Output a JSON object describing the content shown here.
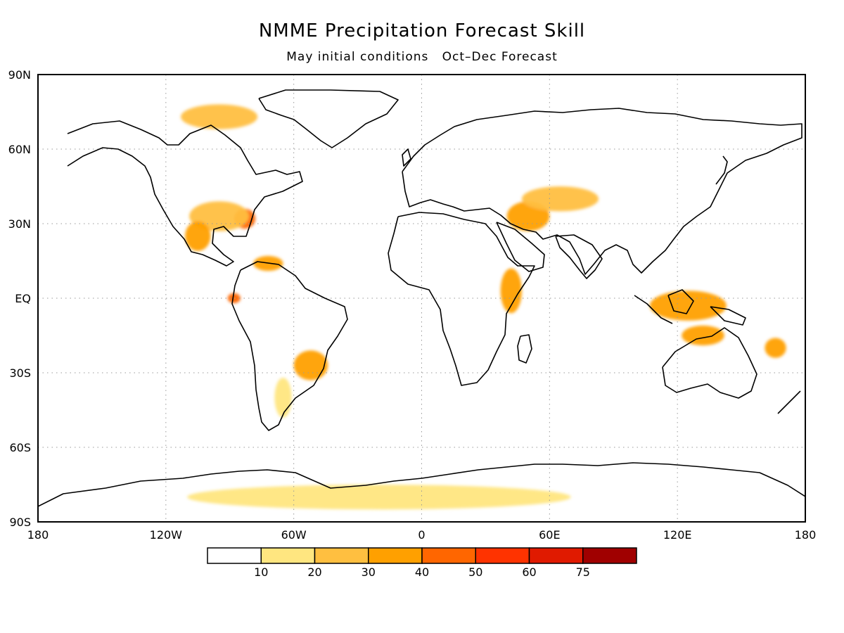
{
  "title": "NMME Precipitation Forecast Skill",
  "subtitle": "May initial conditions   Oct–Dec Forecast",
  "map": {
    "projection": "equirectangular",
    "lon_range": [
      -180,
      180
    ],
    "lat_range": [
      -90,
      90
    ],
    "lat_ticks": [
      {
        "value": 90,
        "label": "90N"
      },
      {
        "value": 60,
        "label": "60N"
      },
      {
        "value": 30,
        "label": "30N"
      },
      {
        "value": 0,
        "label": "EQ"
      },
      {
        "value": -30,
        "label": "30S"
      },
      {
        "value": -60,
        "label": "60S"
      },
      {
        "value": -90,
        "label": "90S"
      }
    ],
    "lon_ticks": [
      {
        "value": -180,
        "label": "180"
      },
      {
        "value": -120,
        "label": "120W"
      },
      {
        "value": -60,
        "label": "60W"
      },
      {
        "value": 0,
        "label": "0"
      },
      {
        "value": 60,
        "label": "60E"
      },
      {
        "value": 120,
        "label": "120E"
      },
      {
        "value": 180,
        "label": "180"
      }
    ],
    "gridlines": "dotted",
    "regions": [
      {
        "name": "Canadian Arctic Archipelago",
        "lon": -95,
        "lat": 73,
        "rx": 18,
        "ry": 5,
        "level": 2
      },
      {
        "name": "Southeast US",
        "lon": -83,
        "lat": 32,
        "rx": 5,
        "ry": 4,
        "level": 4
      },
      {
        "name": "Southern US",
        "lon": -95,
        "lat": 33,
        "rx": 14,
        "ry": 6,
        "level": 2
      },
      {
        "name": "Mexico",
        "lon": -105,
        "lat": 25,
        "rx": 6,
        "ry": 6,
        "level": 3
      },
      {
        "name": "Caribbean",
        "lon": -72,
        "lat": 14,
        "rx": 7,
        "ry": 3,
        "level": 3
      },
      {
        "name": "Southeast South America",
        "lon": -52,
        "lat": -27,
        "rx": 8,
        "ry": 6,
        "level": 3
      },
      {
        "name": "Argentina",
        "lon": -65,
        "lat": -40,
        "rx": 4,
        "ry": 8,
        "level": 1
      },
      {
        "name": "Galapagos",
        "lon": -88,
        "lat": 0,
        "rx": 3,
        "ry": 2,
        "level": 4
      },
      {
        "name": "East Africa",
        "lon": 42,
        "lat": 3,
        "rx": 5,
        "ry": 9,
        "level": 3
      },
      {
        "name": "Middle East",
        "lon": 50,
        "lat": 33,
        "rx": 10,
        "ry": 6,
        "level": 3
      },
      {
        "name": "Central Asia",
        "lon": 65,
        "lat": 40,
        "rx": 18,
        "ry": 5,
        "level": 2
      },
      {
        "name": "Maritime Continent",
        "lon": 125,
        "lat": -3,
        "rx": 18,
        "ry": 6,
        "level": 3
      },
      {
        "name": "Northern Australia",
        "lon": 132,
        "lat": -15,
        "rx": 10,
        "ry": 4,
        "level": 3
      },
      {
        "name": "Southwest Pacific",
        "lon": 166,
        "lat": -20,
        "rx": 5,
        "ry": 4,
        "level": 3
      },
      {
        "name": "Antarctica coast",
        "lon": -20,
        "lat": -80,
        "rx": 90,
        "ry": 5,
        "level": 1
      }
    ]
  },
  "colorbar": {
    "colors": [
      "#ffffff",
      "#ffe680",
      "#ffbf40",
      "#ffa000",
      "#ff6600",
      "#ff3300",
      "#e01a00",
      "#a00000"
    ],
    "labels": [
      "10",
      "20",
      "30",
      "40",
      "50",
      "60",
      "75"
    ]
  }
}
